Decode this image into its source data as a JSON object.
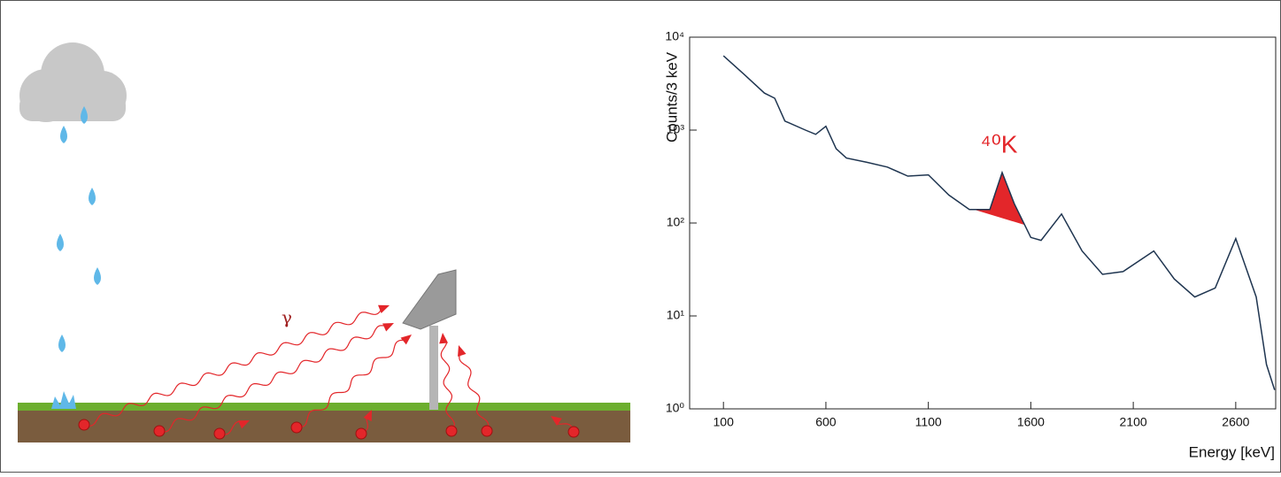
{
  "illustration": {
    "label": "γ"
  },
  "chart_data": {
    "type": "line",
    "x_label": "Energy [keV]",
    "y_label": "Counts/3 keV",
    "annotation": "⁴⁰K",
    "log_scale_y": true,
    "color": "#1f3550",
    "x": [
      100,
      200,
      300,
      350,
      400,
      500,
      550,
      600,
      650,
      700,
      800,
      900,
      1000,
      1100,
      1200,
      1300,
      1400,
      1460,
      1520,
      1600,
      1650,
      1750,
      1850,
      1950,
      2050,
      2200,
      2300,
      2400,
      2500,
      2600,
      2700,
      2750,
      2790
    ],
    "values": [
      6300,
      4000,
      2500,
      2200,
      1250,
      1000,
      900,
      1100,
      630,
      500,
      450,
      400,
      320,
      330,
      200,
      140,
      140,
      350,
      160,
      70,
      65,
      125,
      50,
      28,
      30,
      50,
      25,
      16,
      20,
      68,
      16,
      3,
      1.6
    ],
    "highlight": {
      "range": [
        1320,
        1570
      ],
      "color": "#e3262a"
    },
    "xlim": [
      -65,
      2795
    ],
    "ylim": [
      1,
      10000
    ],
    "xticks": [
      100,
      600,
      1100,
      1600,
      2100,
      2600
    ],
    "yticks": [
      {
        "value": 1,
        "label": "10⁰"
      },
      {
        "value": 10,
        "label": "10¹"
      },
      {
        "value": 100,
        "label": "10²"
      },
      {
        "value": 1000,
        "label": "10³"
      },
      {
        "value": 10000,
        "label": "10⁴"
      }
    ]
  }
}
